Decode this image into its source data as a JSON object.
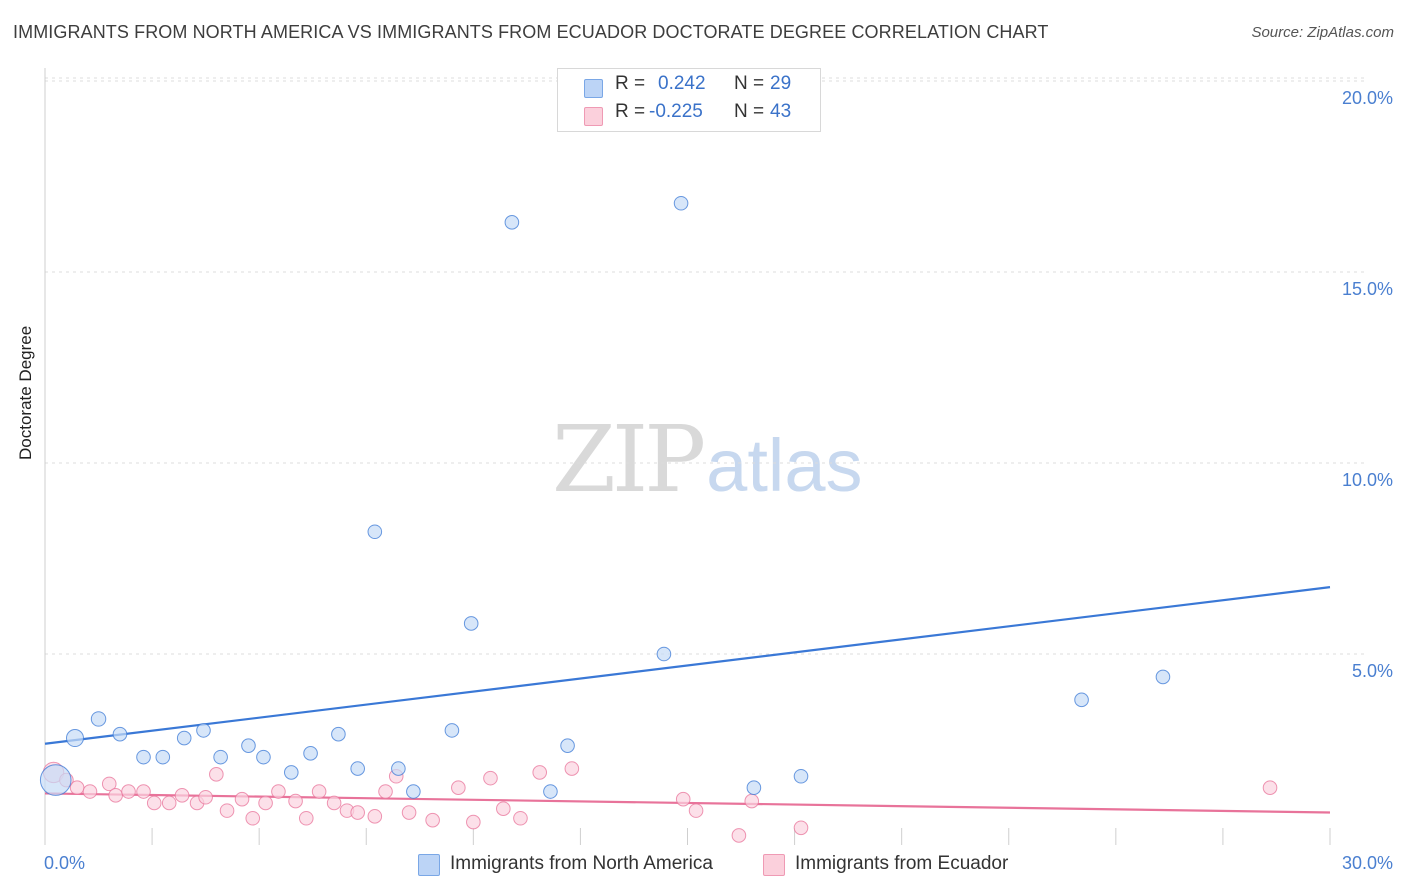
{
  "title": "IMMIGRANTS FROM NORTH AMERICA VS IMMIGRANTS FROM ECUADOR DOCTORATE DEGREE CORRELATION CHART",
  "source": "Source: ZipAtlas.com",
  "watermark": {
    "zip": "ZIP",
    "atlas": "atlas"
  },
  "stats": {
    "r_label": "R =",
    "n_label": "N =",
    "blue": {
      "r": "0.242",
      "n": "29"
    },
    "pink": {
      "r": "-0.225",
      "n": "43"
    }
  },
  "colors": {
    "blue": "#3a78d6",
    "pink": "#e8739a",
    "blue_fill": "#c6dbf7",
    "pink_fill": "#fbd3df",
    "tick": "#4a7fd0"
  },
  "chart_data": {
    "type": "scatter",
    "title": "IMMIGRANTS FROM NORTH AMERICA VS IMMIGRANTS FROM ECUADOR DOCTORATE DEGREE CORRELATION CHART",
    "xlabel": "",
    "ylabel": "Doctorate Degree",
    "xlim": [
      0,
      30
    ],
    "ylim": [
      0,
      20.5
    ],
    "x_tick_labels": [
      "0.0%",
      "30.0%"
    ],
    "y_ticks": [
      5,
      10,
      15,
      20
    ],
    "y_tick_labels": [
      "5.0%",
      "10.0%",
      "15.0%",
      "20.0%"
    ],
    "grid": true,
    "legend": [
      "Immigrants from North America",
      "Immigrants from Ecuador"
    ],
    "series": [
      {
        "name": "Immigrants from North America",
        "color": "blue",
        "points": [
          [
            0.25,
            1.7,
            1.8
          ],
          [
            0.7,
            2.8,
            1.0
          ],
          [
            1.25,
            3.3,
            0.85
          ],
          [
            1.75,
            2.9,
            0.8
          ],
          [
            2.3,
            2.3,
            0.8
          ],
          [
            2.75,
            2.3,
            0.8
          ],
          [
            3.25,
            2.8,
            0.8
          ],
          [
            3.7,
            3.0,
            0.8
          ],
          [
            4.1,
            2.3,
            0.8
          ],
          [
            4.75,
            2.6,
            0.8
          ],
          [
            5.1,
            2.3,
            0.8
          ],
          [
            5.75,
            1.9,
            0.8
          ],
          [
            6.2,
            2.4,
            0.8
          ],
          [
            6.85,
            2.9,
            0.8
          ],
          [
            7.3,
            2.0,
            0.8
          ],
          [
            7.7,
            8.2,
            0.8
          ],
          [
            8.25,
            2.0,
            0.8
          ],
          [
            8.6,
            1.4,
            0.8
          ],
          [
            9.5,
            3.0,
            0.8
          ],
          [
            9.95,
            5.8,
            0.8
          ],
          [
            10.9,
            16.3,
            0.8
          ],
          [
            11.8,
            1.4,
            0.8
          ],
          [
            12.2,
            2.6,
            0.8
          ],
          [
            14.45,
            5.0,
            0.8
          ],
          [
            14.85,
            16.8,
            0.8
          ],
          [
            16.55,
            1.5,
            0.8
          ],
          [
            17.65,
            1.8,
            0.8
          ],
          [
            24.2,
            3.8,
            0.8
          ],
          [
            26.1,
            4.4,
            0.8
          ]
        ],
        "trend": {
          "x": [
            0,
            30
          ],
          "y": [
            2.65,
            6.75
          ]
        }
      },
      {
        "name": "Immigrants from Ecuador",
        "color": "pink",
        "points": [
          [
            0.2,
            1.9,
            1.2
          ],
          [
            0.5,
            1.7,
            0.8
          ],
          [
            0.75,
            1.5,
            0.8
          ],
          [
            1.05,
            1.4,
            0.8
          ],
          [
            1.5,
            1.6,
            0.8
          ],
          [
            1.65,
            1.3,
            0.8
          ],
          [
            1.95,
            1.4,
            0.8
          ],
          [
            2.3,
            1.4,
            0.8
          ],
          [
            2.55,
            1.1,
            0.8
          ],
          [
            2.9,
            1.1,
            0.8
          ],
          [
            3.2,
            1.3,
            0.8
          ],
          [
            3.55,
            1.1,
            0.8
          ],
          [
            3.75,
            1.25,
            0.8
          ],
          [
            4.0,
            1.85,
            0.8
          ],
          [
            4.25,
            0.9,
            0.8
          ],
          [
            4.6,
            1.2,
            0.8
          ],
          [
            4.85,
            0.7,
            0.8
          ],
          [
            5.15,
            1.1,
            0.8
          ],
          [
            5.45,
            1.4,
            0.8
          ],
          [
            5.85,
            1.15,
            0.8
          ],
          [
            6.1,
            0.7,
            0.8
          ],
          [
            6.4,
            1.4,
            0.8
          ],
          [
            6.75,
            1.1,
            0.8
          ],
          [
            7.05,
            0.9,
            0.8
          ],
          [
            7.3,
            0.85,
            0.8
          ],
          [
            7.7,
            0.75,
            0.8
          ],
          [
            7.95,
            1.4,
            0.8
          ],
          [
            8.2,
            1.8,
            0.8
          ],
          [
            8.5,
            0.85,
            0.8
          ],
          [
            9.05,
            0.65,
            0.8
          ],
          [
            9.65,
            1.5,
            0.8
          ],
          [
            10.0,
            0.6,
            0.8
          ],
          [
            10.4,
            1.75,
            0.8
          ],
          [
            10.7,
            0.95,
            0.8
          ],
          [
            11.1,
            0.7,
            0.8
          ],
          [
            11.55,
            1.9,
            0.8
          ],
          [
            12.3,
            2.0,
            0.8
          ],
          [
            14.9,
            1.2,
            0.8
          ],
          [
            15.2,
            0.9,
            0.8
          ],
          [
            16.2,
            0.25,
            0.8
          ],
          [
            16.5,
            1.15,
            0.8
          ],
          [
            17.65,
            0.45,
            0.8
          ],
          [
            28.6,
            1.5,
            0.8
          ]
        ],
        "trend": {
          "x": [
            0,
            30
          ],
          "y": [
            1.35,
            0.85
          ]
        }
      }
    ]
  }
}
